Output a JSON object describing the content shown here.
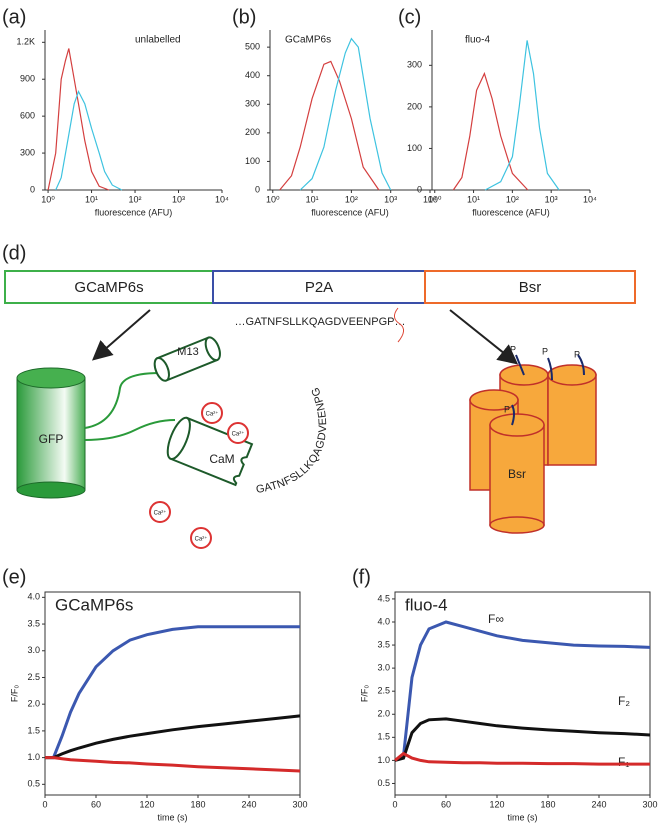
{
  "chart_data": [
    {
      "type": "line",
      "panel_label": "(a)",
      "title": "unlabelled",
      "xlabel": "fluorescence (AFU)",
      "xscale": "log",
      "xlim": [
        0.85,
        10000
      ],
      "ylim": [
        0,
        1300
      ],
      "xticks": [
        {
          "value": 1,
          "label": "10⁰"
        },
        {
          "value": 10,
          "label": "10¹"
        },
        {
          "value": 100,
          "label": "10²"
        },
        {
          "value": 1000,
          "label": "10³"
        },
        {
          "value": 10000,
          "label": "10⁴"
        }
      ],
      "yticks": [
        0,
        300,
        600,
        900,
        {
          "value": 1200,
          "label": "1.2K"
        }
      ],
      "series": [
        {
          "color": "#d43f3f",
          "x": [
            1,
            1.5,
            2,
            2.5,
            3,
            4,
            5,
            7,
            10,
            15,
            25
          ],
          "values": [
            0,
            300,
            900,
            1050,
            1150,
            900,
            700,
            400,
            150,
            30,
            0
          ]
        },
        {
          "color": "#3ec3e0",
          "x": [
            1.5,
            2,
            3,
            4,
            5,
            7,
            10,
            15,
            20,
            30,
            50
          ],
          "values": [
            0,
            100,
            450,
            700,
            800,
            700,
            500,
            300,
            150,
            40,
            0
          ]
        }
      ]
    },
    {
      "type": "line",
      "panel_label": "(b)",
      "title": "GCaMP6s",
      "xlabel": "fluorescence (AFU)",
      "xscale": "log",
      "xlim": [
        0.85,
        10000
      ],
      "ylim": [
        0,
        560
      ],
      "xticks": [
        {
          "value": 1,
          "label": "10⁰"
        },
        {
          "value": 10,
          "label": "10¹"
        },
        {
          "value": 100,
          "label": "10²"
        },
        {
          "value": 1000,
          "label": "10³"
        },
        {
          "value": 10000,
          "label": "10⁴"
        }
      ],
      "yticks": [
        0,
        100,
        200,
        300,
        400,
        500
      ],
      "series": [
        {
          "color": "#d43f3f",
          "x": [
            1.5,
            3,
            5,
            10,
            20,
            30,
            50,
            100,
            200,
            500
          ],
          "values": [
            0,
            50,
            150,
            320,
            440,
            450,
            380,
            250,
            80,
            0
          ]
        },
        {
          "color": "#3ec3e0",
          "x": [
            5,
            10,
            20,
            40,
            70,
            100,
            150,
            300,
            600,
            1000
          ],
          "values": [
            0,
            40,
            150,
            350,
            480,
            530,
            500,
            250,
            60,
            0
          ]
        }
      ]
    },
    {
      "type": "line",
      "panel_label": "(c)",
      "title": "fluo-4",
      "xlabel": "fluorescence (AFU)",
      "xscale": "log",
      "xlim": [
        0.85,
        10000
      ],
      "ylim": [
        0,
        385
      ],
      "xticks": [
        {
          "value": 1,
          "label": "10⁰"
        },
        {
          "value": 10,
          "label": "10¹"
        },
        {
          "value": 100,
          "label": "10²"
        },
        {
          "value": 1000,
          "label": "10³"
        },
        {
          "value": 10000,
          "label": "10⁴"
        }
      ],
      "yticks": [
        0,
        100,
        200,
        300
      ],
      "series": [
        {
          "color": "#d43f3f",
          "x": [
            3,
            5,
            8,
            12,
            19,
            30,
            50,
            100,
            250
          ],
          "values": [
            0,
            30,
            130,
            240,
            280,
            220,
            130,
            40,
            0
          ]
        },
        {
          "color": "#3ec3e0",
          "x": [
            20,
            50,
            100,
            150,
            240,
            350,
            500,
            800,
            1600
          ],
          "values": [
            0,
            20,
            80,
            200,
            360,
            280,
            150,
            40,
            0
          ]
        }
      ]
    },
    {
      "type": "line",
      "panel_label": "(e)",
      "title": "GCaMP6s",
      "xlabel": "time (s)",
      "ylabel": "F/F₀",
      "frame": true,
      "xlim": [
        0,
        300
      ],
      "ylim": [
        0.3,
        4.1
      ],
      "xticks": [
        0,
        60,
        120,
        180,
        240,
        300
      ],
      "yticks": [
        {
          "value": 0.5,
          "label": "0.5"
        },
        {
          "value": 1,
          "label": "1.0"
        },
        {
          "value": 1.5,
          "label": "1.5"
        },
        {
          "value": 2,
          "label": "2.0"
        },
        {
          "value": 2.5,
          "label": "2.5"
        },
        {
          "value": 3,
          "label": "3.0"
        },
        {
          "value": 3.5,
          "label": "3.5"
        },
        {
          "value": 4,
          "label": "4.0"
        }
      ],
      "x": [
        0,
        10,
        20,
        30,
        40,
        60,
        80,
        100,
        120,
        150,
        180,
        210,
        240,
        270,
        300
      ],
      "series": [
        {
          "color": "#3b58b0",
          "values": [
            1.0,
            1.0,
            1.4,
            1.85,
            2.2,
            2.7,
            3.0,
            3.2,
            3.3,
            3.4,
            3.45,
            3.45,
            3.45,
            3.45,
            3.45
          ]
        },
        {
          "color": "#111111",
          "values": [
            1.0,
            1.0,
            1.07,
            1.13,
            1.18,
            1.27,
            1.34,
            1.4,
            1.45,
            1.52,
            1.58,
            1.63,
            1.68,
            1.73,
            1.78
          ]
        },
        {
          "color": "#d42a2a",
          "values": [
            1.0,
            1.0,
            0.98,
            0.96,
            0.95,
            0.93,
            0.91,
            0.9,
            0.88,
            0.86,
            0.83,
            0.81,
            0.79,
            0.77,
            0.75
          ]
        }
      ]
    },
    {
      "type": "line",
      "panel_label": "(f)",
      "title": "fluo-4",
      "xlabel": "time (s)",
      "ylabel": "F/F₀",
      "frame": true,
      "annotations": [
        "F∞",
        "F₂",
        "F₁"
      ],
      "xlim": [
        0,
        300
      ],
      "ylim": [
        0.25,
        4.65
      ],
      "xticks": [
        0,
        60,
        120,
        180,
        240,
        300
      ],
      "yticks": [
        {
          "value": 0.5,
          "label": "0.5"
        },
        {
          "value": 1,
          "label": "1.0"
        },
        {
          "value": 1.5,
          "label": "1.5"
        },
        {
          "value": 2,
          "label": "2.0"
        },
        {
          "value": 2.5,
          "label": "2.5"
        },
        {
          "value": 3,
          "label": "3.0"
        },
        {
          "value": 3.5,
          "label": "3.5"
        },
        {
          "value": 4,
          "label": "4.0"
        },
        {
          "value": 4.5,
          "label": "4.5"
        }
      ],
      "x": [
        0,
        10,
        20,
        30,
        40,
        60,
        80,
        100,
        120,
        150,
        180,
        210,
        240,
        270,
        300
      ],
      "series": [
        {
          "color": "#3b58b0",
          "values": [
            1.0,
            1.1,
            2.8,
            3.5,
            3.85,
            4.0,
            3.9,
            3.8,
            3.7,
            3.6,
            3.55,
            3.5,
            3.48,
            3.47,
            3.45
          ]
        },
        {
          "color": "#111111",
          "values": [
            1.0,
            1.05,
            1.6,
            1.8,
            1.88,
            1.9,
            1.85,
            1.8,
            1.75,
            1.7,
            1.66,
            1.63,
            1.6,
            1.58,
            1.55
          ]
        },
        {
          "color": "#d42a2a",
          "values": [
            1.0,
            1.15,
            1.05,
            1.0,
            0.97,
            0.96,
            0.95,
            0.95,
            0.94,
            0.94,
            0.93,
            0.93,
            0.92,
            0.92,
            0.92
          ]
        }
      ]
    }
  ],
  "diagram": {
    "panel_label": "(d)",
    "segments": [
      "GCaMP6s",
      "P2A",
      "Bsr"
    ],
    "sequence": "…GATNFSLLKQAGDVEENPGP…",
    "gfp": "GFP",
    "m13": "M13",
    "cam": "CaM",
    "linker": "GATNFSLLKQAGDVEENPG",
    "calcium": "Ca²⁺",
    "phosphate": "P",
    "bsr": "Bsr"
  }
}
